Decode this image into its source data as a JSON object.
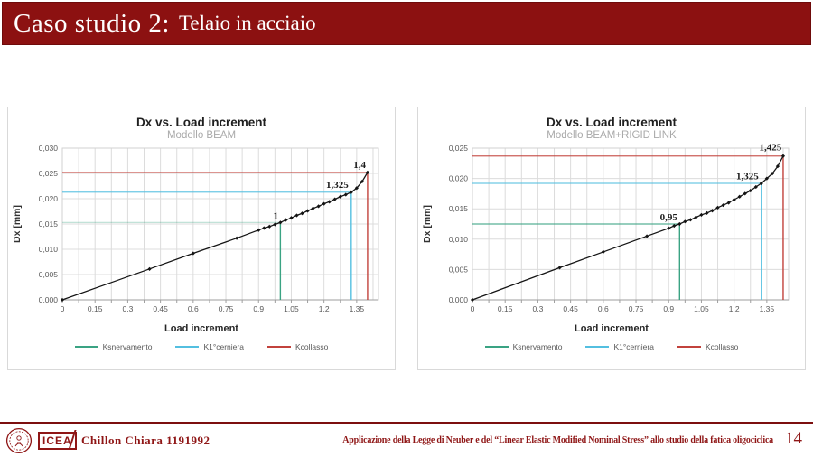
{
  "slide": {
    "title_main": "Caso studio 2:",
    "title_sub": "Telaio in acciaio"
  },
  "footer": {
    "icea_label": "ICEA",
    "author": "Chillon Chiara 1191992",
    "center_text": "Applicazione della Legge di Neuber e del “Linear Elastic Modified Nominal Stress” allo studio della fatica oligociclica",
    "page_number": "14"
  },
  "colors": {
    "header_bg": "#8c1111",
    "accent_dark_red": "#8f1616",
    "snervamento_green": "#3aa383",
    "cerniera_blue": "#53bfe0",
    "collasso_red": "#c2423c",
    "series_black": "#141414",
    "grid_gray": "#dcdcdc"
  },
  "chart_data": [
    {
      "type": "line",
      "title": "Dx vs. Load increment",
      "subtitle": "Modello BEAM",
      "xlabel": "Load increment",
      "ylabel": "Dx [mm]",
      "xlim": [
        0,
        1.45
      ],
      "ylim": [
        0,
        0.03
      ],
      "grid": true,
      "legend_position": "bottom",
      "xtick_values": [
        0,
        0.15,
        0.3,
        0.45,
        0.6,
        0.75,
        0.9,
        1.05,
        1.2,
        1.35
      ],
      "xtick_labels": [
        "0",
        "0,15",
        "0,3",
        "0,45",
        "0,6",
        "0,75",
        "0,9",
        "1,05",
        "1,2",
        "1,35"
      ],
      "xtick_minor_step": 0.075,
      "ytick_values": [
        0,
        0.005,
        0.01,
        0.015,
        0.02,
        0.025,
        0.03
      ],
      "ytick_labels": [
        "0,000",
        "0,005",
        "0,010",
        "0,015",
        "0,020",
        "0,025",
        "0,030"
      ],
      "series": [
        {
          "name": "Dx",
          "color": "#141414",
          "points": [
            [
              0,
              0
            ],
            [
              0.4,
              0.0061
            ],
            [
              0.6,
              0.0092
            ],
            [
              0.8,
              0.0122
            ],
            [
              0.9,
              0.0138
            ],
            [
              0.925,
              0.0142
            ],
            [
              0.95,
              0.0145
            ],
            [
              0.975,
              0.0149
            ],
            [
              1,
              0.0153
            ],
            [
              1.025,
              0.0158
            ],
            [
              1.05,
              0.0162
            ],
            [
              1.075,
              0.0167
            ],
            [
              1.1,
              0.0171
            ],
            [
              1.125,
              0.0176
            ],
            [
              1.15,
              0.0181
            ],
            [
              1.175,
              0.0185
            ],
            [
              1.2,
              0.019
            ],
            [
              1.225,
              0.0194
            ],
            [
              1.25,
              0.0199
            ],
            [
              1.275,
              0.0204
            ],
            [
              1.3,
              0.0208
            ],
            [
              1.325,
              0.0213
            ],
            [
              1.35,
              0.0221
            ],
            [
              1.375,
              0.0234
            ],
            [
              1.4,
              0.0252
            ]
          ]
        }
      ],
      "reference_lines": [
        {
          "name": "Ksnervamento",
          "x": 1.0,
          "y": 0.0153,
          "color": "#3aa383",
          "label": "1",
          "label_pos": [
            0.99,
            0.016
          ],
          "h_opacity": 0.35
        },
        {
          "name": "K1°cerniera",
          "x": 1.325,
          "y": 0.0213,
          "color": "#53bfe0",
          "label": "1,325",
          "label_pos": [
            1.312,
            0.0221
          ],
          "h_opacity": 0.85
        },
        {
          "name": "Kcollasso",
          "x": 1.4,
          "y": 0.0252,
          "color": "#c2423c",
          "label": "1,4",
          "label_pos": [
            1.392,
            0.0261
          ],
          "h_opacity": 0.75
        }
      ],
      "legend": [
        {
          "label": "Ksnervamento",
          "color": "#3aa383"
        },
        {
          "label": "K1°cerniera",
          "color": "#53bfe0"
        },
        {
          "label": "Kcollasso",
          "color": "#c2423c"
        }
      ]
    },
    {
      "type": "line",
      "title": "Dx vs. Load increment",
      "subtitle": "Modello BEAM+RIGID LINK",
      "xlabel": "Load increment",
      "ylabel": "Dx [mm]",
      "xlim": [
        0,
        1.45
      ],
      "ylim": [
        0,
        0.025
      ],
      "grid": true,
      "legend_position": "bottom",
      "xtick_values": [
        0,
        0.15,
        0.3,
        0.45,
        0.6,
        0.75,
        0.9,
        1.05,
        1.2,
        1.35
      ],
      "xtick_labels": [
        "0",
        "0,15",
        "0,3",
        "0,45",
        "0,6",
        "0,75",
        "0,9",
        "1,05",
        "1,2",
        "1,35"
      ],
      "xtick_minor_step": 0.075,
      "ytick_values": [
        0,
        0.005,
        0.01,
        0.015,
        0.02,
        0.025
      ],
      "ytick_labels": [
        "0,000",
        "0,005",
        "0,010",
        "0,015",
        "0,020",
        "0,025"
      ],
      "series": [
        {
          "name": "Dx",
          "color": "#141414",
          "points": [
            [
              0,
              0
            ],
            [
              0.4,
              0.0053
            ],
            [
              0.6,
              0.0079
            ],
            [
              0.8,
              0.0105
            ],
            [
              0.9,
              0.0118
            ],
            [
              0.925,
              0.0122
            ],
            [
              0.95,
              0.0125
            ],
            [
              0.975,
              0.0129
            ],
            [
              1,
              0.0132
            ],
            [
              1.025,
              0.0136
            ],
            [
              1.05,
              0.014
            ],
            [
              1.075,
              0.0143
            ],
            [
              1.1,
              0.0147
            ],
            [
              1.125,
              0.0152
            ],
            [
              1.15,
              0.0156
            ],
            [
              1.175,
              0.016
            ],
            [
              1.2,
              0.0165
            ],
            [
              1.225,
              0.017
            ],
            [
              1.25,
              0.0175
            ],
            [
              1.275,
              0.018
            ],
            [
              1.3,
              0.0186
            ],
            [
              1.325,
              0.0192
            ],
            [
              1.35,
              0.02
            ],
            [
              1.375,
              0.0208
            ],
            [
              1.4,
              0.022
            ],
            [
              1.425,
              0.0237
            ]
          ]
        }
      ],
      "reference_lines": [
        {
          "name": "Ksnervamento",
          "x": 0.95,
          "y": 0.0125,
          "color": "#3aa383",
          "label": "0,95",
          "label_pos": [
            0.94,
            0.0131
          ],
          "h_opacity": 0.85
        },
        {
          "name": "K1°cerniera",
          "x": 1.325,
          "y": 0.0192,
          "color": "#53bfe0",
          "label": "1,325",
          "label_pos": [
            1.312,
            0.0199
          ],
          "h_opacity": 0.85
        },
        {
          "name": "Kcollasso",
          "x": 1.425,
          "y": 0.0237,
          "color": "#c2423c",
          "label": "1,425",
          "label_pos": [
            1.418,
            0.0246
          ],
          "h_opacity": 0.85
        }
      ],
      "legend": [
        {
          "label": "Ksnervamento",
          "color": "#3aa383"
        },
        {
          "label": "K1°cerniera",
          "color": "#53bfe0"
        },
        {
          "label": "Kcollasso",
          "color": "#c2423c"
        }
      ]
    }
  ]
}
